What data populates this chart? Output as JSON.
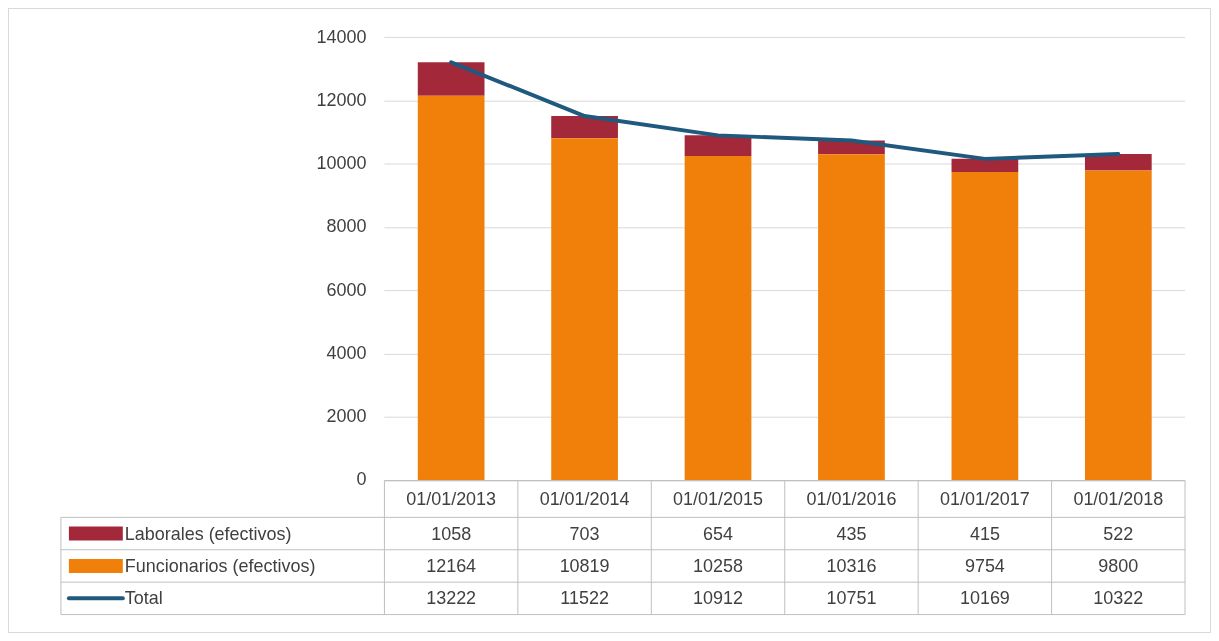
{
  "chart_data": {
    "type": "bar",
    "stacked": true,
    "categories": [
      "01/01/2013",
      "01/01/2014",
      "01/01/2015",
      "01/01/2016",
      "01/01/2017",
      "01/01/2018"
    ],
    "series": [
      {
        "name": "Funcionarios (efectivos)",
        "color": "#f0800a",
        "values": [
          12164,
          10819,
          10258,
          10316,
          9754,
          9800
        ]
      },
      {
        "name": "Laborales (efectivos)",
        "color": "#a3283a",
        "values": [
          1058,
          703,
          654,
          435,
          415,
          522
        ]
      },
      {
        "name": "Total",
        "type": "line",
        "color": "#1f5a7e",
        "values": [
          13222,
          11522,
          10912,
          10751,
          10169,
          10322
        ]
      }
    ],
    "ylim": [
      0,
      14000
    ],
    "yticks": [
      0,
      2000,
      4000,
      6000,
      8000,
      10000,
      12000,
      14000
    ],
    "grid": "y",
    "legend": "bottom",
    "data_labels": true
  }
}
